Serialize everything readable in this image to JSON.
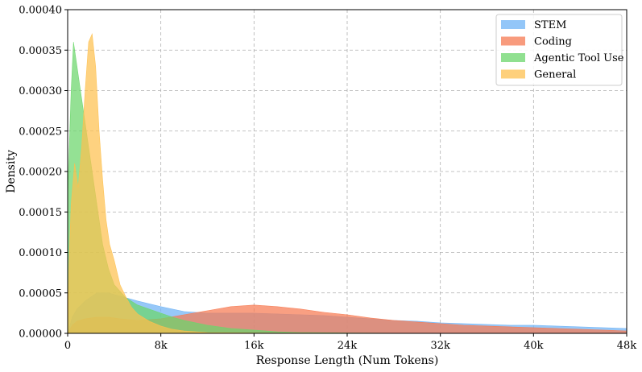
{
  "chart_data": {
    "type": "area",
    "title": "",
    "xlabel": "Response Length (Num Tokens)",
    "ylabel": "Density",
    "xlim": [
      0,
      48000
    ],
    "ylim": [
      0,
      0.0004
    ],
    "x_ticks": [
      0,
      8000,
      16000,
      24000,
      32000,
      40000,
      48000
    ],
    "x_tick_labels": [
      "0",
      "8k",
      "16k",
      "24k",
      "32k",
      "40k",
      "48k"
    ],
    "y_ticks": [
      0,
      5e-05,
      0.0001,
      0.00015,
      0.0002,
      0.00025,
      0.0003,
      0.00035,
      0.0004
    ],
    "y_tick_labels": [
      "0.00000",
      "0.00005",
      "0.00010",
      "0.00015",
      "0.00020",
      "0.00025",
      "0.00030",
      "0.00035",
      "0.00040"
    ],
    "grid": true,
    "legend_position": "top-right",
    "series": [
      {
        "name": "STEM",
        "color": "#6fb3f5",
        "x": [
          0,
          400,
          800,
          1500,
          2500,
          3500,
          4500,
          6000,
          8000,
          10000,
          12000,
          14000,
          16000,
          18000,
          20000,
          22000,
          24000,
          26000,
          28000,
          30000,
          32000,
          34000,
          36000,
          38000,
          40000,
          42000,
          44000,
          46000,
          48000
        ],
        "values": [
          0,
          2e-05,
          3e-05,
          4e-05,
          5e-05,
          5e-05,
          4.6e-05,
          4e-05,
          3.3e-05,
          2.7e-05,
          2.5e-05,
          2.5e-05,
          2.5e-05,
          2.4e-05,
          2.3e-05,
          2.2e-05,
          2e-05,
          1.8e-05,
          1.6e-05,
          1.5e-05,
          1.3e-05,
          1.2e-05,
          1.1e-05,
          1e-05,
          1e-05,
          9e-06,
          8e-06,
          7e-06,
          6e-06
        ]
      },
      {
        "name": "Coding",
        "color": "#f67a52",
        "x": [
          0,
          400,
          800,
          1500,
          2500,
          3500,
          4500,
          6000,
          8000,
          10000,
          12000,
          14000,
          16000,
          18000,
          20000,
          22000,
          24000,
          26000,
          28000,
          30000,
          32000,
          34000,
          36000,
          38000,
          40000,
          42000,
          44000,
          46000,
          48000
        ],
        "values": [
          0,
          1e-05,
          1.5e-05,
          1.8e-05,
          2e-05,
          2e-05,
          1.8e-05,
          1.6e-05,
          1.8e-05,
          2.3e-05,
          2.8e-05,
          3.3e-05,
          3.5e-05,
          3.3e-05,
          3e-05,
          2.6e-05,
          2.3e-05,
          1.9e-05,
          1.6e-05,
          1.4e-05,
          1.2e-05,
          1e-05,
          9e-06,
          8e-06,
          7e-06,
          6e-06,
          5e-06,
          4e-06,
          3e-06
        ]
      },
      {
        "name": "Agentic Tool Use",
        "color": "#6bd66b",
        "x": [
          0,
          300,
          500,
          800,
          1100,
          1500,
          2000,
          2500,
          3000,
          3500,
          4000,
          5000,
          6000,
          7000,
          8000,
          9000,
          10000,
          11000,
          12000,
          14000,
          16000,
          18000,
          20000,
          24000,
          28000,
          32000,
          40000,
          48000
        ],
        "values": [
          0.00017,
          0.0003,
          0.00036,
          0.00033,
          0.0003,
          0.00026,
          0.00021,
          0.00016,
          0.00011,
          8e-05,
          6e-05,
          4.4e-05,
          3.5e-05,
          3e-05,
          2.5e-05,
          2e-05,
          1.6e-05,
          1.3e-05,
          1e-05,
          6e-06,
          4e-06,
          2e-06,
          1e-06,
          5e-07,
          2e-07,
          1e-07,
          0,
          0
        ]
      },
      {
        "name": "General",
        "color": "#fec04f",
        "x": [
          0,
          100,
          300,
          600,
          900,
          1200,
          1500,
          1800,
          2100,
          2400,
          2700,
          3000,
          3300,
          3600,
          4000,
          4500,
          5000,
          5500,
          6000,
          7000,
          8000,
          9000,
          10000,
          12000,
          16000,
          24000,
          32000,
          48000
        ],
        "values": [
          0,
          8e-05,
          0.00016,
          0.00021,
          0.00018,
          0.00023,
          0.0003,
          0.00036,
          0.00037,
          0.00033,
          0.00025,
          0.00019,
          0.00014,
          0.00011,
          9e-05,
          6e-05,
          4.5e-05,
          3.2e-05,
          2.4e-05,
          1.5e-05,
          9e-06,
          5e-06,
          3e-06,
          1e-06,
          5e-07,
          2e-07,
          1e-07,
          0
        ]
      }
    ]
  }
}
